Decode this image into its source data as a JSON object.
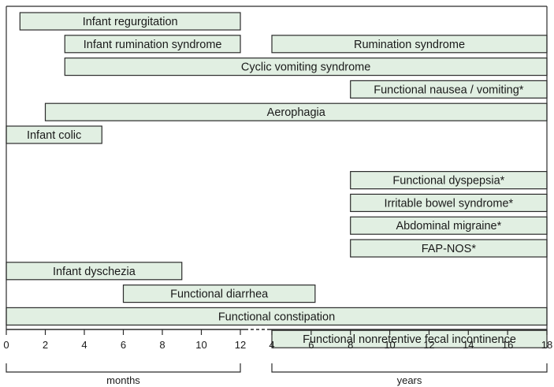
{
  "colors": {
    "bar_fill": "#e1efe2",
    "bar_stroke": "#2b2b2b",
    "frame": "#2b2b2b",
    "text": "#1a1a1a"
  },
  "chart_data": {
    "type": "bar",
    "orientation": "horizontal-range",
    "axis": {
      "segments": [
        {
          "label": "months",
          "min": 0,
          "max": 12,
          "ticks": [
            "0",
            "2",
            "4",
            "6",
            "8",
            "10",
            "12"
          ]
        },
        {
          "label": "years",
          "min": 4,
          "max": 18,
          "ticks": [
            "4",
            "6",
            "8",
            "10",
            "12",
            "14",
            "16",
            "18"
          ]
        }
      ],
      "break_between_segments": true
    },
    "grid": false,
    "rows": [
      [
        {
          "label": "Infant regurgitation",
          "start": {
            "unit": "months",
            "value": 0.7
          },
          "end": {
            "unit": "months",
            "value": 12
          }
        }
      ],
      [
        {
          "label": "Infant rumination syndrome",
          "start": {
            "unit": "months",
            "value": 3
          },
          "end": {
            "unit": "months",
            "value": 12
          }
        },
        {
          "label": "Rumination syndrome",
          "start": {
            "unit": "years",
            "value": 4
          },
          "end": {
            "unit": "years",
            "value": 18
          }
        }
      ],
      [
        {
          "label": "Cyclic vomiting syndrome",
          "start": {
            "unit": "months",
            "value": 3
          },
          "end": {
            "unit": "years",
            "value": 18
          }
        }
      ],
      [
        {
          "label": "Functional nausea / vomiting*",
          "start": {
            "unit": "years",
            "value": 8
          },
          "end": {
            "unit": "years",
            "value": 18
          }
        }
      ],
      [
        {
          "label": "Aerophagia",
          "start": {
            "unit": "months",
            "value": 2
          },
          "end": {
            "unit": "years",
            "value": 18
          }
        }
      ],
      [
        {
          "label": "Infant colic",
          "start": {
            "unit": "months",
            "value": 0
          },
          "end": {
            "unit": "months",
            "value": 4.9
          }
        }
      ],
      [],
      [
        {
          "label": "Functional dyspepsia*",
          "start": {
            "unit": "years",
            "value": 8
          },
          "end": {
            "unit": "years",
            "value": 18
          }
        }
      ],
      [
        {
          "label": "Irritable bowel syndrome*",
          "start": {
            "unit": "years",
            "value": 8
          },
          "end": {
            "unit": "years",
            "value": 18
          }
        }
      ],
      [
        {
          "label": "Abdominal migraine*",
          "start": {
            "unit": "years",
            "value": 8
          },
          "end": {
            "unit": "years",
            "value": 18
          }
        }
      ],
      [
        {
          "label": "FAP-NOS*",
          "start": {
            "unit": "years",
            "value": 8
          },
          "end": {
            "unit": "years",
            "value": 18
          }
        }
      ],
      [
        {
          "label": "Infant dyschezia",
          "start": {
            "unit": "months",
            "value": 0
          },
          "end": {
            "unit": "months",
            "value": 9
          }
        }
      ],
      [
        {
          "label": "Functional diarrhea",
          "start": {
            "unit": "months",
            "value": 6
          },
          "end": {
            "unit": "years",
            "value": 6.2
          }
        }
      ],
      [
        {
          "label": "Functional constipation",
          "start": {
            "unit": "months",
            "value": 0
          },
          "end": {
            "unit": "years",
            "value": 18
          }
        }
      ],
      [
        {
          "label": "Functional nonretentive fecal incontinence",
          "start": {
            "unit": "years",
            "value": 4
          },
          "end": {
            "unit": "years",
            "value": 18
          }
        }
      ]
    ]
  }
}
